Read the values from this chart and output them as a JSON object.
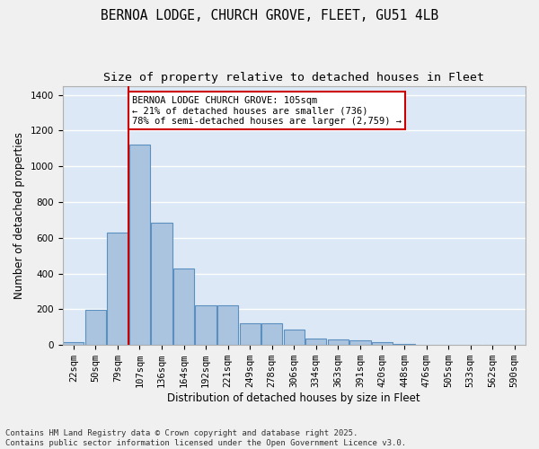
{
  "title_line1": "BERNOA LODGE, CHURCH GROVE, FLEET, GU51 4LB",
  "title_line2": "Size of property relative to detached houses in Fleet",
  "xlabel": "Distribution of detached houses by size in Fleet",
  "ylabel": "Number of detached properties",
  "categories": [
    "22sqm",
    "50sqm",
    "79sqm",
    "107sqm",
    "136sqm",
    "164sqm",
    "192sqm",
    "221sqm",
    "249sqm",
    "278sqm",
    "306sqm",
    "334sqm",
    "363sqm",
    "391sqm",
    "420sqm",
    "448sqm",
    "476sqm",
    "505sqm",
    "533sqm",
    "562sqm",
    "590sqm"
  ],
  "values": [
    15,
    195,
    630,
    1120,
    685,
    430,
    220,
    220,
    120,
    120,
    85,
    35,
    30,
    25,
    14,
    7,
    3,
    2,
    1,
    0,
    0
  ],
  "bar_color": "#aac4e0",
  "bar_edge_color": "#5a8fc0",
  "background_color": "#dce8f5",
  "grid_color": "#ffffff",
  "vline_pos": 2.5,
  "vline_color": "#cc0000",
  "annotation_text": "BERNOA LODGE CHURCH GROVE: 105sqm\n← 21% of detached houses are smaller (736)\n78% of semi-detached houses are larger (2,759) →",
  "annotation_box_facecolor": "#ffffff",
  "annotation_box_edgecolor": "#cc0000",
  "ylim": [
    0,
    1450
  ],
  "yticks": [
    0,
    200,
    400,
    600,
    800,
    1000,
    1200,
    1400
  ],
  "footer_text": "Contains HM Land Registry data © Crown copyright and database right 2025.\nContains public sector information licensed under the Open Government Licence v3.0.",
  "title_fontsize": 10.5,
  "subtitle_fontsize": 9.5,
  "axis_label_fontsize": 8.5,
  "tick_fontsize": 7.5,
  "annotation_fontsize": 7.5,
  "footer_fontsize": 6.5
}
